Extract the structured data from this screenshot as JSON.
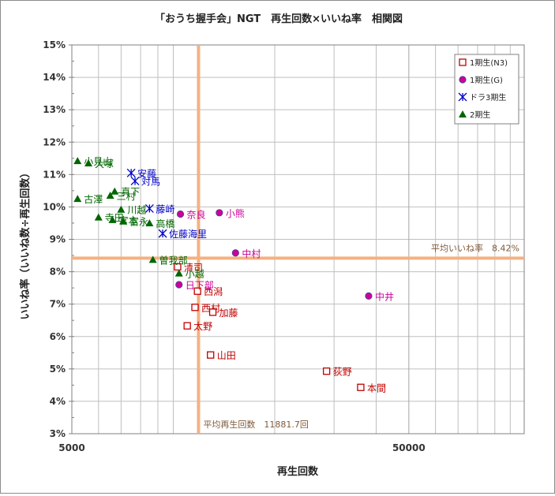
{
  "chart_data": {
    "type": "scatter",
    "title": "「おうち握手会」NGT　再生回数×いいね率　相関図",
    "xlabel": "再生回数",
    "ylabel": "いいね率（いいね数÷再生回数）",
    "x_scale": "log",
    "xlim": [
      5000,
      110000
    ],
    "x_ticks": [
      5000,
      50000
    ],
    "x_tick_labels": [
      "5000",
      "50000"
    ],
    "ylim": [
      3,
      15
    ],
    "y_ticks": [
      3,
      4,
      5,
      6,
      7,
      8,
      9,
      10,
      11,
      12,
      13,
      14,
      15
    ],
    "y_tick_labels": [
      "3%",
      "4%",
      "5%",
      "6%",
      "7%",
      "8%",
      "9%",
      "10%",
      "11%",
      "12%",
      "13%",
      "14%",
      "15%"
    ],
    "grid": true,
    "legend_position": "top-right",
    "reference_lines": {
      "avg_views": {
        "value": 11881.7,
        "label": "平均再生回数　11881.7回",
        "color": "#f4b183"
      },
      "avg_like_rate": {
        "value": 8.42,
        "label": "平均いいね率　8.42%",
        "color": "#f4b183"
      }
    },
    "series": [
      {
        "name": "1期生(N3)",
        "marker": "square-open",
        "color": "#c00000",
        "label_color": "#c00000",
        "points": [
          {
            "label": "清司",
            "x": 10300,
            "y": 8.15
          },
          {
            "label": "西潟",
            "x": 11800,
            "y": 7.4
          },
          {
            "label": "西村",
            "x": 11600,
            "y": 6.9
          },
          {
            "label": "加藤",
            "x": 13100,
            "y": 6.75
          },
          {
            "label": "太野",
            "x": 11000,
            "y": 6.33
          },
          {
            "label": "山田",
            "x": 12900,
            "y": 5.43
          },
          {
            "label": "荻野",
            "x": 28500,
            "y": 4.93
          },
          {
            "label": "本間",
            "x": 36000,
            "y": 4.43
          }
        ]
      },
      {
        "name": "1期生(G)",
        "marker": "circle",
        "color": "#cc0099",
        "label_color": "#cc0099",
        "points": [
          {
            "label": "奈良",
            "x": 10500,
            "y": 9.78
          },
          {
            "label": "小熊",
            "x": 13700,
            "y": 9.82
          },
          {
            "label": "中村",
            "x": 15300,
            "y": 8.58
          },
          {
            "label": "日下部",
            "x": 10400,
            "y": 7.6
          },
          {
            "label": "中井",
            "x": 38000,
            "y": 7.25
          }
        ]
      },
      {
        "name": "ドラ3期生",
        "marker": "asterisk",
        "color": "#0000cc",
        "label_color": "#0000cc",
        "points": [
          {
            "label": "安藤",
            "x": 7500,
            "y": 11.05
          },
          {
            "label": "対馬",
            "x": 7700,
            "y": 10.8
          },
          {
            "label": "藤崎",
            "x": 8500,
            "y": 9.95
          },
          {
            "label": "佐藤海里",
            "x": 9300,
            "y": 9.18
          }
        ]
      },
      {
        "name": "2期生",
        "marker": "triangle",
        "color": "#006600",
        "label_color": "#006600",
        "points": [
          {
            "label": "小見山",
            "x": 5200,
            "y": 11.42
          },
          {
            "label": "大塚",
            "x": 5600,
            "y": 11.35
          },
          {
            "label": "真下",
            "x": 6700,
            "y": 10.48
          },
          {
            "label": "三村",
            "x": 6500,
            "y": 10.35
          },
          {
            "label": "古澤",
            "x": 5200,
            "y": 10.25
          },
          {
            "label": "川越",
            "x": 7000,
            "y": 9.92
          },
          {
            "label": "寺田",
            "x": 6000,
            "y": 9.68
          },
          {
            "label": "宮本",
            "x": 6600,
            "y": 9.6
          },
          {
            "label": "富永",
            "x": 7100,
            "y": 9.56
          },
          {
            "label": "高橋",
            "x": 8500,
            "y": 9.5
          },
          {
            "label": "曽我部",
            "x": 8700,
            "y": 8.37
          },
          {
            "label": "小越",
            "x": 10400,
            "y": 7.95
          }
        ]
      }
    ]
  }
}
